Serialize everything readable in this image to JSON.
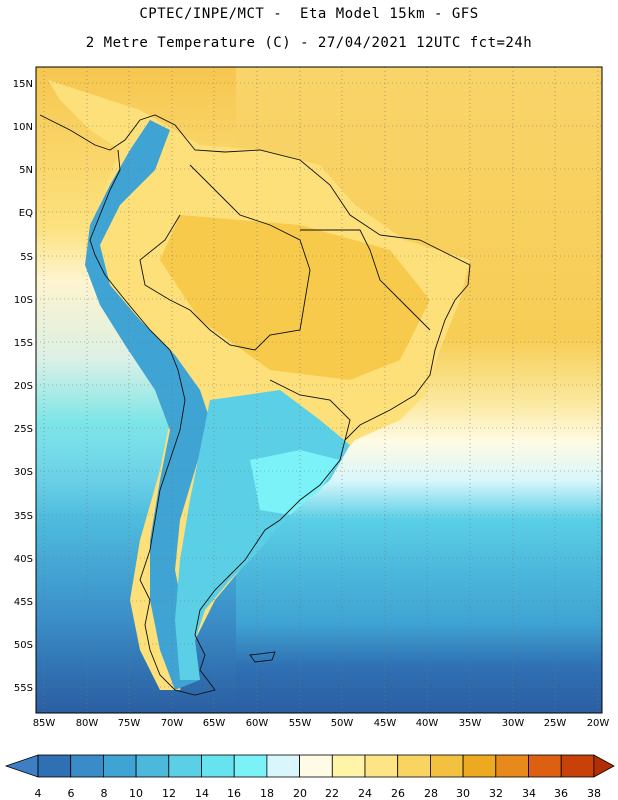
{
  "title_line1": "CPTEC/INPE/MCT -  Eta Model 15km - GFS",
  "title_line2": "2 Metre Temperature (C) - 27/04/2021 12UTC fct=24h",
  "map": {
    "lat_labels": [
      "15N",
      "10N",
      "5N",
      "EQ",
      "5S",
      "10S",
      "15S",
      "20S",
      "25S",
      "30S",
      "35S",
      "40S",
      "45S",
      "50S",
      "55S"
    ],
    "lon_labels": [
      "85W",
      "80W",
      "75W",
      "70W",
      "65W",
      "60W",
      "55W",
      "50W",
      "45W",
      "40W",
      "35W",
      "30W",
      "25W",
      "20W"
    ]
  },
  "colorbar": {
    "labels": [
      "4",
      "6",
      "8",
      "10",
      "12",
      "14",
      "16",
      "18",
      "20",
      "22",
      "24",
      "26",
      "28",
      "30",
      "32",
      "34",
      "36",
      "38"
    ],
    "colors": [
      "#3f7ec2",
      "#2f6fb3",
      "#3a8cc8",
      "#3fa4d3",
      "#4cb8dc",
      "#5bcfe6",
      "#66e3ee",
      "#7af2f7",
      "#d8f6fb",
      "#fffbe4",
      "#fff4a8",
      "#fde585",
      "#f9d460",
      "#f2c140",
      "#eda91f",
      "#e88a1b",
      "#dd6012",
      "#c84108",
      "#b02f05"
    ]
  }
}
